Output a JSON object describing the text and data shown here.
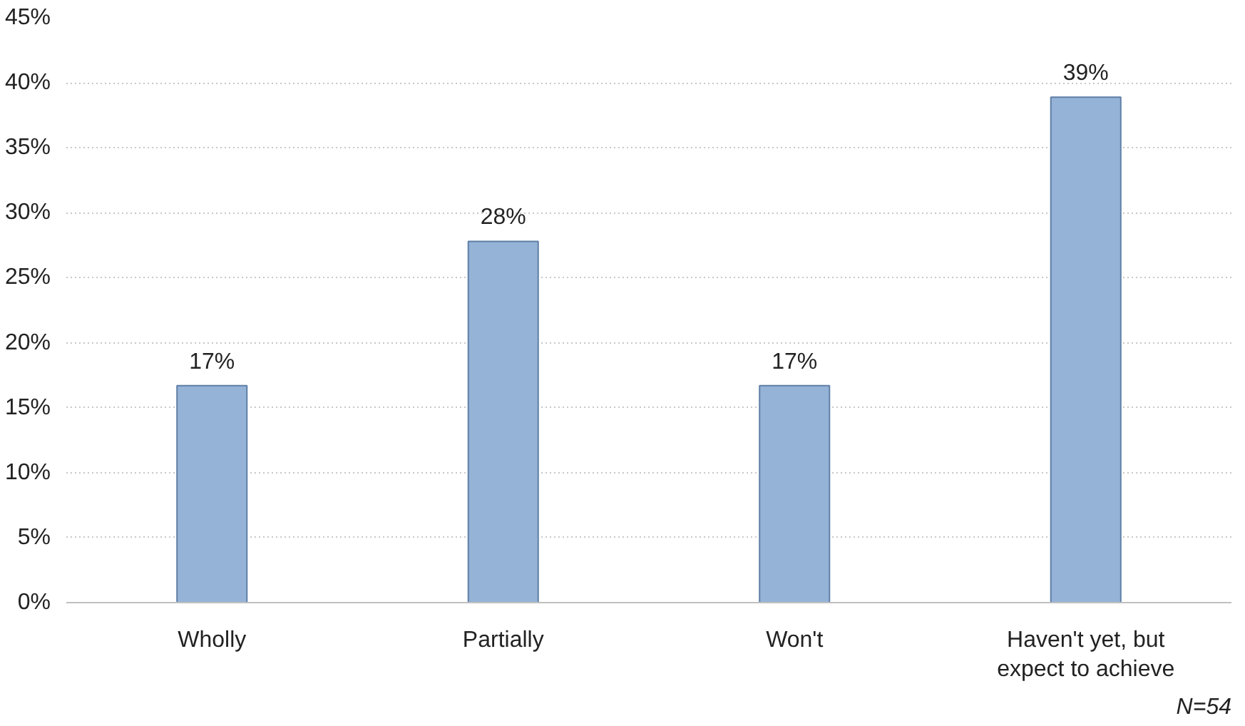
{
  "chart_data": {
    "type": "bar",
    "categories": [
      "Wholly",
      "Partially",
      "Won't",
      "Haven't yet, but\nexpect to achieve"
    ],
    "values": [
      16.7,
      27.8,
      16.7,
      38.9
    ],
    "value_labels": [
      "17%",
      "28%",
      "17%",
      "39%"
    ],
    "color": "#95b3d7",
    "ylim": [
      0,
      45
    ],
    "yticks": [
      {
        "value": 0,
        "label": "0%"
      },
      {
        "value": 5,
        "label": "5%"
      },
      {
        "value": 10,
        "label": "10%"
      },
      {
        "value": 15,
        "label": "15%"
      },
      {
        "value": 20,
        "label": "20%"
      },
      {
        "value": 25,
        "label": "25%"
      },
      {
        "value": 30,
        "label": "30%"
      },
      {
        "value": 35,
        "label": "35%"
      },
      {
        "value": 40,
        "label": "40%"
      },
      {
        "value": 45,
        "label": "45%"
      }
    ],
    "grid": "y",
    "annotations": [
      "N=54"
    ]
  }
}
